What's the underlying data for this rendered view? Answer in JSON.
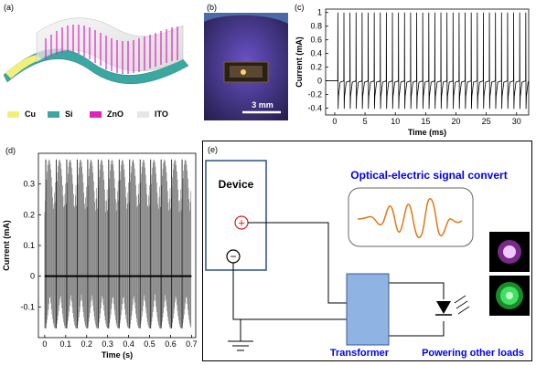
{
  "panels": {
    "a": "(a)",
    "b": "(b)",
    "c": "(c)",
    "d": "(d)",
    "e": "(e)"
  },
  "legend_a": [
    {
      "label": "Cu",
      "color": "#f3f07a"
    },
    {
      "label": "Si",
      "color": "#3aa8a0"
    },
    {
      "label": "ZnO",
      "color": "#e020c0"
    },
    {
      "label": "ITO",
      "color": "#e6e6e6"
    }
  ],
  "photo_b": {
    "scalebar": "3 mm"
  },
  "chart_data": [
    {
      "id": "c",
      "type": "line",
      "xlabel": "Time (ms)",
      "ylabel": "Current (mA)",
      "xlim": [
        -1.5,
        32
      ],
      "ylim": [
        -0.5,
        1.05
      ],
      "xticks": [
        0,
        5,
        10,
        15,
        20,
        25,
        30
      ],
      "yticks": [
        -0.4,
        -0.2,
        0,
        0.2,
        0.4,
        0.6,
        0.8,
        1
      ],
      "ytick_labels": [
        "-0.4",
        "-0.2",
        "0",
        "0.2",
        "0.4",
        "0.6",
        "0.8",
        "1"
      ],
      "pulse_period": 1.0,
      "first_pulse": 0.5,
      "pulse_peak": 1.0,
      "pulse_trough": -0.41,
      "baseline": 0.0,
      "grid": false
    },
    {
      "id": "d",
      "type": "line",
      "xlabel": "Time (s)",
      "ylabel": "Current (mA)",
      "xlim": [
        -0.03,
        0.72
      ],
      "ylim": [
        -0.2,
        0.4
      ],
      "xticks": [
        0,
        0.1,
        0.2,
        0.3,
        0.4,
        0.5,
        0.6,
        0.7
      ],
      "yticks": [
        -0.1,
        0,
        0.1,
        0.2,
        0.3
      ],
      "ytick_labels": [
        "-0.1",
        "0",
        "0.1",
        "0.2",
        "0.3"
      ],
      "envelope_max": 0.38,
      "envelope_min": -0.17,
      "group_period": 0.05,
      "baseline": 0.0,
      "grid": false
    }
  ],
  "diagram_e": {
    "device_label": "Device",
    "plus_symbol": "+",
    "minus_symbol": "−",
    "signal_title": "Optical-electric  signal convert",
    "transformer_label": "Transformer",
    "loads_label": "Powering other loads",
    "title_color": "#0000ee",
    "signal_color": "#e07818",
    "device_border": "#3a5a8c",
    "transformer_fill": "#8fb4e3",
    "led_colors": [
      "#e6a0f0",
      "#30d040"
    ]
  }
}
